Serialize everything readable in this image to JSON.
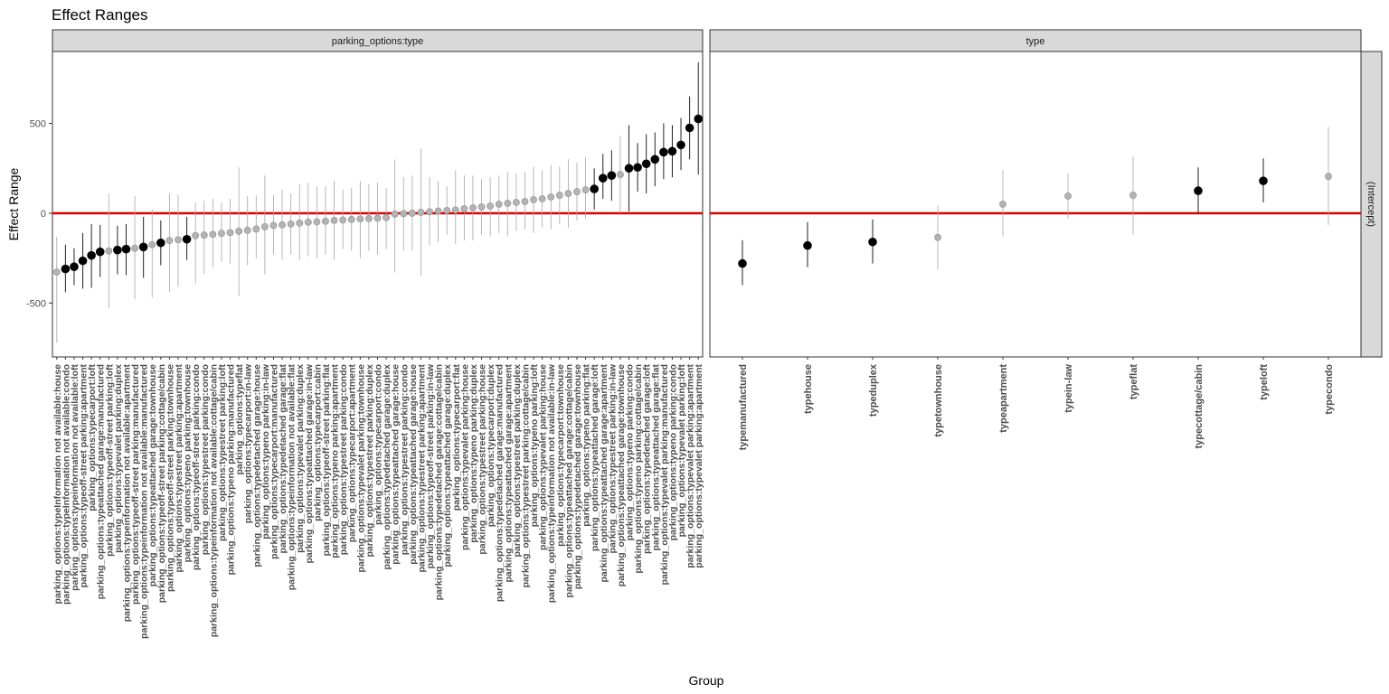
{
  "title": "Effect Ranges",
  "colors": {
    "zero_line": "#dd0000",
    "significant": "#000000",
    "non_significant": "#b3b3b3",
    "strip_bg": "#d9d9d9"
  },
  "chart_data": {
    "type": "scatter",
    "title": "Effect Ranges",
    "xlabel": "Group",
    "ylabel": "Effect Range",
    "ylim": [
      -800,
      900
    ],
    "yticks": [
      -500,
      0,
      500
    ],
    "row_strip": "(Intercept)",
    "reference_line": 0,
    "panels": [
      {
        "strip": "parking_options:type",
        "points": [
          {
            "label": "parking_options:typeInformation not available:house",
            "y": -328,
            "lo": -720,
            "hi": -130,
            "sig": false
          },
          {
            "label": "parking_options:typeInformation not available:condo",
            "y": -310,
            "lo": -440,
            "hi": -175,
            "sig": true
          },
          {
            "label": "parking_options:typeinformation not available:loft",
            "y": -298,
            "lo": -400,
            "hi": -195,
            "sig": true
          },
          {
            "label": "parking_options:typeoff-street parking:apartment",
            "y": -265,
            "lo": -420,
            "hi": -110,
            "sig": true
          },
          {
            "label": "parking_options:typecarport:loft",
            "y": -235,
            "lo": -415,
            "hi": -60,
            "sig": true
          },
          {
            "label": "parking_options:typeattached garage:manufactured",
            "y": -215,
            "lo": -355,
            "hi": -65,
            "sig": true
          },
          {
            "label": "parking_options:typeoff-street parking:loft",
            "y": -210,
            "lo": -530,
            "hi": 110,
            "sig": false
          },
          {
            "label": "parking_options:typevalet parking:duplex",
            "y": -205,
            "lo": -340,
            "hi": -70,
            "sig": true
          },
          {
            "label": "parking_options:typeinformation not available:apartment",
            "y": -200,
            "lo": -345,
            "hi": -60,
            "sig": true
          },
          {
            "label": "parking_options:typeoff-street parking:manufactured",
            "y": -195,
            "lo": -480,
            "hi": 95,
            "sig": false
          },
          {
            "label": "parking_options:typeinformation not available:manufactured",
            "y": -188,
            "lo": -360,
            "hi": -20,
            "sig": true
          },
          {
            "label": "parking_options:typeattached garage:townhouse",
            "y": -175,
            "lo": -470,
            "hi": 20,
            "sig": false
          },
          {
            "label": "parking_options:typeoff-street parking:cottage/cabin",
            "y": -165,
            "lo": -290,
            "hi": -40,
            "sig": true
          },
          {
            "label": "parking_options:typeoff-street parking:townhouse",
            "y": -152,
            "lo": -440,
            "hi": 110,
            "sig": false
          },
          {
            "label": "parking_options:typestreet parking:apartment",
            "y": -148,
            "lo": -410,
            "hi": 100,
            "sig": false
          },
          {
            "label": "parking_options:typeno parking:townhouse",
            "y": -145,
            "lo": -260,
            "hi": -20,
            "sig": true
          },
          {
            "label": "parking_options:typeoff-street parking:condo",
            "y": -125,
            "lo": -390,
            "hi": 60,
            "sig": false
          },
          {
            "label": "parking_options:typestreet parking:condo",
            "y": -122,
            "lo": -340,
            "hi": 70,
            "sig": false
          },
          {
            "label": "parking_options:typeinformation not available:cottage/cabin",
            "y": -118,
            "lo": -300,
            "hi": 80,
            "sig": false
          },
          {
            "label": "parking_options:typestreet parking:loft",
            "y": -112,
            "lo": -270,
            "hi": 60,
            "sig": false
          },
          {
            "label": "parking_options:typeno parking:manufactured",
            "y": -108,
            "lo": -280,
            "hi": 80,
            "sig": false
          },
          {
            "label": "parking_options:typeflat",
            "y": -100,
            "lo": -460,
            "hi": 255,
            "sig": false
          },
          {
            "label": "parking_options:typecarport:in-law",
            "y": -95,
            "lo": -290,
            "hi": 95,
            "sig": false
          },
          {
            "label": "parking_options:typedetached garage:house",
            "y": -88,
            "lo": -250,
            "hi": 100,
            "sig": false
          },
          {
            "label": "parking_options:typeno parking:in-law",
            "y": -75,
            "lo": -340,
            "hi": 210,
            "sig": false
          },
          {
            "label": "parking_options:typecarport:manufactured",
            "y": -68,
            "lo": -230,
            "hi": 100,
            "sig": false
          },
          {
            "label": "parking_options:typedetached garage:flat",
            "y": -65,
            "lo": -260,
            "hi": 130,
            "sig": false
          },
          {
            "label": "parking_options:typeinformation not available:flat",
            "y": -60,
            "lo": -230,
            "hi": 110,
            "sig": false
          },
          {
            "label": "parking_options:typevalet parking:duplex",
            "y": -55,
            "lo": -260,
            "hi": 160,
            "sig": false
          },
          {
            "label": "parking_options:typeattached garage:in-law",
            "y": -50,
            "lo": -240,
            "hi": 170,
            "sig": false
          },
          {
            "label": "parking_options:typecarport:cabin",
            "y": -48,
            "lo": -250,
            "hi": 150,
            "sig": false
          },
          {
            "label": "parking_options:typeoff-street parking:flat",
            "y": -45,
            "lo": -230,
            "hi": 150,
            "sig": false
          },
          {
            "label": "parking_options:typeno parking:apartment",
            "y": -40,
            "lo": -260,
            "hi": 180,
            "sig": false
          },
          {
            "label": "parking_options:typestreet parking:condo",
            "y": -38,
            "lo": -200,
            "hi": 130,
            "sig": false
          },
          {
            "label": "parking_options:typecarport:apartment",
            "y": -35,
            "lo": -210,
            "hi": 140,
            "sig": false
          },
          {
            "label": "parking_options:typevalet parking:townhouse",
            "y": -32,
            "lo": -250,
            "hi": 180,
            "sig": false
          },
          {
            "label": "parking_options:typestreet parking:duplex",
            "y": -30,
            "lo": -210,
            "hi": 160,
            "sig": false
          },
          {
            "label": "parking_options:typecarport:condo",
            "y": -28,
            "lo": -230,
            "hi": 170,
            "sig": false
          },
          {
            "label": "parking_options:typedetached garage:duplex",
            "y": -25,
            "lo": -200,
            "hi": 140,
            "sig": false
          },
          {
            "label": "parking_options:typeattached garage:house",
            "y": -5,
            "lo": -330,
            "hi": 300,
            "sig": false
          },
          {
            "label": "parking_options:typestreet parking:condo",
            "y": -3,
            "lo": -210,
            "hi": 200,
            "sig": false
          },
          {
            "label": "parking_options:typeattached garage:house",
            "y": 0,
            "lo": -210,
            "hi": 210,
            "sig": false
          },
          {
            "label": "parking_options:typestreet parking:apartment",
            "y": 5,
            "lo": -350,
            "hi": 360,
            "sig": false
          },
          {
            "label": "parking_options:typeoff-street parking:in-law",
            "y": 8,
            "lo": -180,
            "hi": 200,
            "sig": false
          },
          {
            "label": "parking_options:typedetached garage:cottage/cabin",
            "y": 12,
            "lo": -160,
            "hi": 180,
            "sig": false
          },
          {
            "label": "parking_options:typeattached garage:duplex",
            "y": 15,
            "lo": -120,
            "hi": 150,
            "sig": false
          },
          {
            "label": "parking_options:typecarport:flat",
            "y": 18,
            "lo": -170,
            "hi": 240,
            "sig": false
          },
          {
            "label": "parking_options:typevalet parking:house",
            "y": 25,
            "lo": -150,
            "hi": 210,
            "sig": false
          },
          {
            "label": "parking_options:typeno parking:duplex",
            "y": 30,
            "lo": -150,
            "hi": 210,
            "sig": false
          },
          {
            "label": "parking_options:typestreet parking:house",
            "y": 35,
            "lo": -120,
            "hi": 190,
            "sig": false
          },
          {
            "label": "parking_options:typecarport:duplex",
            "y": 40,
            "lo": -130,
            "hi": 200,
            "sig": false
          },
          {
            "label": "parking_options:typedetached garage:manufactured",
            "y": 50,
            "lo": -110,
            "hi": 210,
            "sig": false
          },
          {
            "label": "parking_options:typeattached garage:apartment",
            "y": 55,
            "lo": -130,
            "hi": 230,
            "sig": false
          },
          {
            "label": "parking_options:typestreet parking:duplex",
            "y": 60,
            "lo": -100,
            "hi": 220,
            "sig": false
          },
          {
            "label": "parking_options:typestreet parking:cottage/cabin",
            "y": 65,
            "lo": -90,
            "hi": 230,
            "sig": false
          },
          {
            "label": "parking_options:typeno parking:loft",
            "y": 75,
            "lo": -110,
            "hi": 260,
            "sig": false
          },
          {
            "label": "parking_options:typevalet parking:house",
            "y": 80,
            "lo": -80,
            "hi": 240,
            "sig": false
          },
          {
            "label": "parking_options:typeinformation not available:in-law",
            "y": 90,
            "lo": -90,
            "hi": 270,
            "sig": false
          },
          {
            "label": "parking_options:typecarport:townhouse",
            "y": 100,
            "lo": -60,
            "hi": 260,
            "sig": false
          },
          {
            "label": "parking_options:typeattached garage:cottage/cabin",
            "y": 110,
            "lo": -80,
            "hi": 300,
            "sig": false
          },
          {
            "label": "parking_options:typedetached garage:townhouse",
            "y": 120,
            "lo": -40,
            "hi": 280,
            "sig": false
          },
          {
            "label": "parking_options:typeno parking:flat",
            "y": 130,
            "lo": -30,
            "hi": 310,
            "sig": false
          },
          {
            "label": "parking_options:typeattached garage:loft",
            "y": 135,
            "lo": 20,
            "hi": 250,
            "sig": true
          },
          {
            "label": "parking_options:typeattached garage:apartment",
            "y": 195,
            "lo": 80,
            "hi": 330,
            "sig": true
          },
          {
            "label": "parking_options:typestreet parking:in-law",
            "y": 210,
            "lo": 70,
            "hi": 350,
            "sig": true
          },
          {
            "label": "parking_options:typeattached garage:townhouse",
            "y": 215,
            "lo": 0,
            "hi": 430,
            "sig": false
          },
          {
            "label": "parking_options:typeno parking:condo",
            "y": 250,
            "lo": 10,
            "hi": 490,
            "sig": true
          },
          {
            "label": "parking_options:typeno parking:cottage/cabin",
            "y": 255,
            "lo": 120,
            "hi": 390,
            "sig": true
          },
          {
            "label": "parking_options:typedetached garage:loft",
            "y": 275,
            "lo": 110,
            "hi": 440,
            "sig": true
          },
          {
            "label": "parking_options:typeattached garage:flat",
            "y": 300,
            "lo": 150,
            "hi": 450,
            "sig": true
          },
          {
            "label": "parking_options:typevalet parking:manufactured",
            "y": 340,
            "lo": 190,
            "hi": 500,
            "sig": true
          },
          {
            "label": "parking_options:typeno parking:condo",
            "y": 345,
            "lo": 200,
            "hi": 490,
            "sig": true
          },
          {
            "label": "parking_options:typevalet parking:loft",
            "y": 380,
            "lo": 240,
            "hi": 530,
            "sig": true
          },
          {
            "label": "parking_options:typevalet parking:apartment",
            "y": 475,
            "lo": 300,
            "hi": 650,
            "sig": true
          },
          {
            "label": "parking_options:typevalet parking:apartment",
            "y": 525,
            "lo": 215,
            "hi": 840,
            "sig": true
          }
        ]
      },
      {
        "strip": "type",
        "points": [
          {
            "label": "typemanufactured",
            "y": -280,
            "lo": -400,
            "hi": -150,
            "sig": true
          },
          {
            "label": "typehouse",
            "y": -180,
            "lo": -300,
            "hi": -50,
            "sig": true
          },
          {
            "label": "typeduplex",
            "y": -160,
            "lo": -280,
            "hi": -35,
            "sig": true
          },
          {
            "label": "typetownhouse",
            "y": -135,
            "lo": -310,
            "hi": 40,
            "sig": false
          },
          {
            "label": "typeapartment",
            "y": 50,
            "lo": -130,
            "hi": 240,
            "sig": false
          },
          {
            "label": "typein-law",
            "y": 95,
            "lo": -30,
            "hi": 220,
            "sig": false
          },
          {
            "label": "typeflat",
            "y": 100,
            "lo": -120,
            "hi": 315,
            "sig": false
          },
          {
            "label": "typecottage/cabin",
            "y": 125,
            "lo": 0,
            "hi": 255,
            "sig": true
          },
          {
            "label": "typeloft",
            "y": 180,
            "lo": 60,
            "hi": 305,
            "sig": true
          },
          {
            "label": "typecondo",
            "y": 205,
            "lo": -65,
            "hi": 480,
            "sig": false
          }
        ]
      }
    ]
  }
}
